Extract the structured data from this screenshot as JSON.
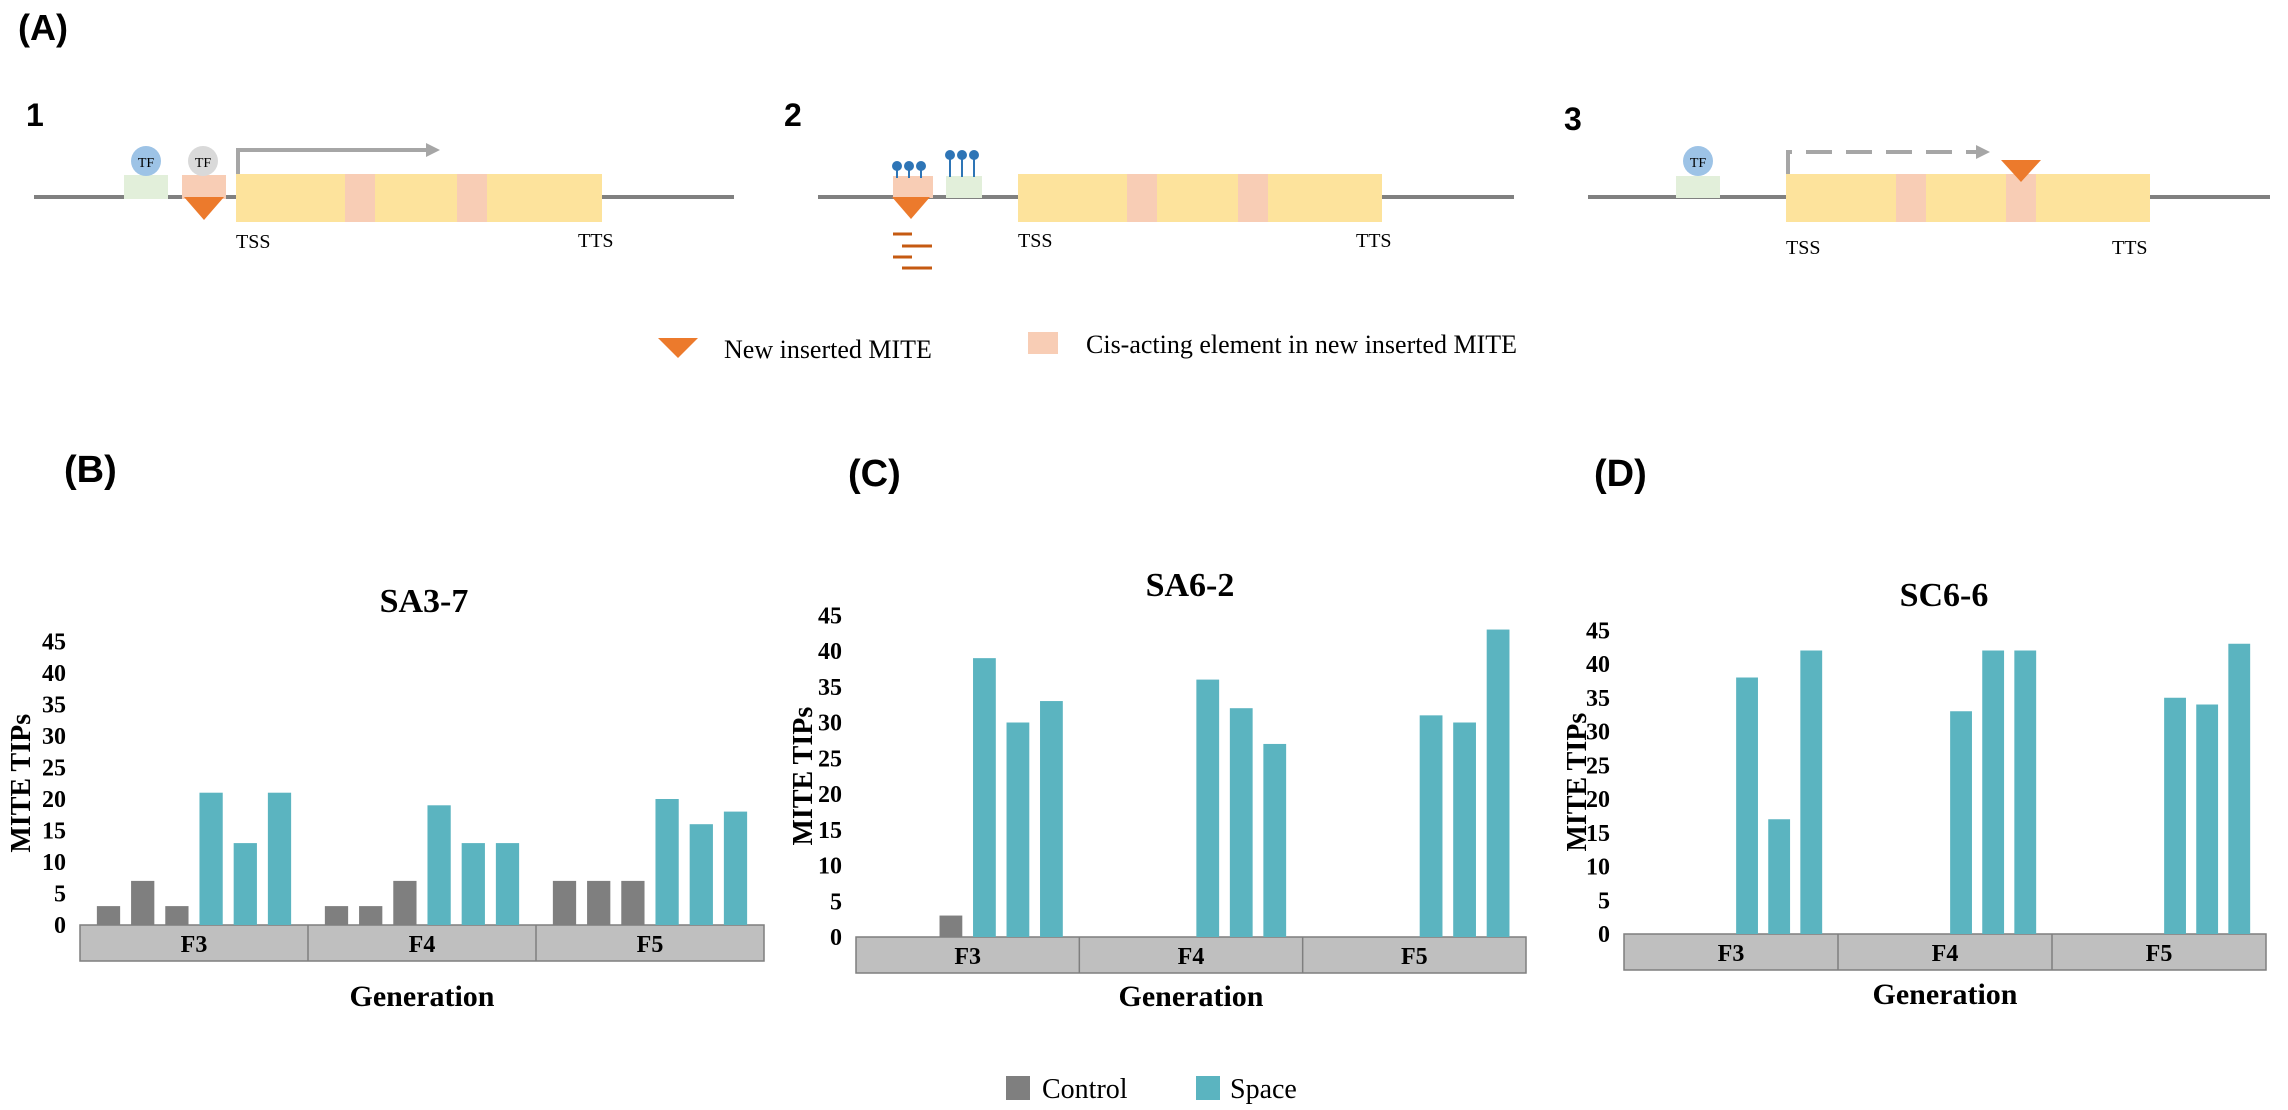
{
  "panel_labels": {
    "a": "(A)",
    "b": "(B)",
    "c": "(C)",
    "d": "(D)"
  },
  "diagram": {
    "models": [
      {
        "number": "1",
        "tf_labels": [
          "TF",
          "TF"
        ],
        "tss": "TSS",
        "tts": "TTS"
      },
      {
        "number": "2",
        "tss": "TSS",
        "tts": "TTS"
      },
      {
        "number": "3",
        "tf_labels": [
          "TF"
        ],
        "tss": "TSS",
        "tts": "TTS"
      }
    ],
    "legend": {
      "mite": "New inserted MITE",
      "cis": "Cis-acting element in new inserted MITE"
    }
  },
  "colors": {
    "control": "#7f7f7f",
    "space": "#5bb4c0",
    "gene": "#fde39c",
    "cis": "#f8cdb5",
    "mite": "#ec7a2c",
    "tf_site": "#e2efda",
    "tf_blue": "#9dc3e6",
    "tf_grey": "#d9d9d9",
    "methyl": "#2e75b6",
    "line": "#808080",
    "axis_band": "#bfbfbf"
  },
  "chart_data": [
    {
      "type": "bar",
      "title": "SA3-7",
      "xlabel": "Generation",
      "ylabel": "MITE TIPs",
      "ylim": [
        0,
        45
      ],
      "yticks": [
        "0",
        "5",
        "10",
        "15",
        "20",
        "25",
        "30",
        "35",
        "40",
        "45"
      ],
      "groups": [
        "F3",
        "F4",
        "F5"
      ],
      "series": [
        {
          "name": "Control",
          "values": [
            [
              3,
              7,
              3
            ],
            [
              3,
              3,
              7
            ],
            [
              7,
              7,
              7
            ]
          ]
        },
        {
          "name": "Space",
          "values": [
            [
              21,
              13,
              21
            ],
            [
              19,
              13,
              13
            ],
            [
              20,
              16,
              18
            ]
          ]
        }
      ]
    },
    {
      "type": "bar",
      "title": "SA6-2",
      "xlabel": "Generation",
      "ylabel": "MITE TIPs",
      "ylim": [
        0,
        45
      ],
      "yticks": [
        "0",
        "5",
        "10",
        "15",
        "20",
        "25",
        "30",
        "35",
        "40",
        "45"
      ],
      "groups": [
        "F3",
        "F4",
        "F5"
      ],
      "series": [
        {
          "name": "Control",
          "values": [
            [
              0,
              0,
              3
            ],
            [
              0,
              0,
              0
            ],
            [
              0,
              0,
              0
            ]
          ]
        },
        {
          "name": "Space",
          "values": [
            [
              39,
              30,
              33
            ],
            [
              36,
              32,
              27
            ],
            [
              31,
              30,
              43
            ]
          ]
        }
      ]
    },
    {
      "type": "bar",
      "title": "SC6-6",
      "xlabel": "Generation",
      "ylabel": "MITE TIPs",
      "ylim": [
        0,
        45
      ],
      "yticks": [
        "0",
        "5",
        "10",
        "15",
        "20",
        "25",
        "30",
        "35",
        "40",
        "45"
      ],
      "groups": [
        "F3",
        "F4",
        "F5"
      ],
      "series": [
        {
          "name": "Control",
          "values": [
            [
              0,
              0,
              0
            ],
            [
              0,
              0,
              0
            ],
            [
              0,
              0,
              0
            ]
          ]
        },
        {
          "name": "Space",
          "values": [
            [
              38,
              17,
              42
            ],
            [
              33,
              42,
              42
            ],
            [
              35,
              34,
              43
            ]
          ]
        }
      ]
    }
  ],
  "legend": {
    "control": "Control",
    "space": "Space"
  }
}
